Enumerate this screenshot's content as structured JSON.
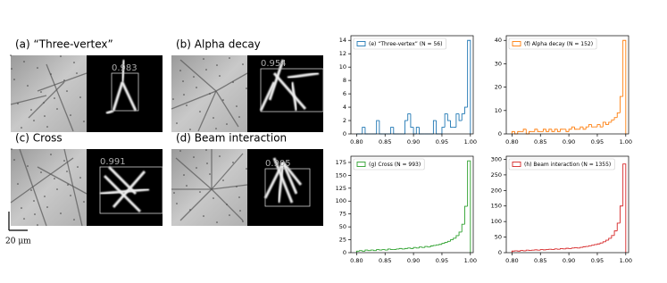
{
  "panels": [
    {
      "label": "(a) “Three-vertex”",
      "score": 0.983
    },
    {
      "label": "(b) Alpha decay",
      "score": 0.954
    },
    {
      "label": "(c) Cross",
      "score": 0.991
    },
    {
      "label": "(d) Beam interaction",
      "score": 0.905
    }
  ],
  "scale_bar": "20 μm",
  "chart_data": [
    {
      "type": "histogram",
      "legend": "(e) “Three-vertex” (N = 56)",
      "legend_loc": "upper left",
      "color": "#1f77b4",
      "bins": [
        0.8,
        0.805,
        0.81,
        0.815,
        0.82,
        0.825,
        0.83,
        0.835,
        0.84,
        0.845,
        0.85,
        0.855,
        0.86,
        0.865,
        0.87,
        0.875,
        0.88,
        0.885,
        0.89,
        0.895,
        0.9,
        0.905,
        0.91,
        0.915,
        0.92,
        0.925,
        0.93,
        0.935,
        0.94,
        0.945,
        0.95,
        0.955,
        0.96,
        0.965,
        0.97,
        0.975,
        0.98,
        0.985,
        0.99,
        0.995,
        1.0
      ],
      "values": [
        0,
        0,
        1,
        0,
        0,
        0,
        0,
        2,
        0,
        0,
        0,
        0,
        1,
        0,
        0,
        0,
        0,
        2,
        3,
        1,
        0,
        1,
        0,
        0,
        0,
        0,
        0,
        2,
        0,
        0,
        1,
        3,
        2,
        1,
        1,
        3,
        2,
        3,
        4,
        14
      ],
      "xlim": [
        0.79,
        1.005
      ],
      "xticks": [
        {
          "value": 0.8,
          "label": "0.80"
        },
        0.85,
        {
          "value": 0.9,
          "label": "0.90"
        },
        0.95,
        {
          "value": 1.0,
          "label": "1.00"
        }
      ],
      "ylim": [
        0,
        14.7
      ],
      "yticks": [
        0,
        2,
        4,
        6,
        8,
        10,
        12,
        14
      ]
    },
    {
      "type": "histogram",
      "legend": "(f) Alpha decay (N = 152)",
      "legend_loc": "upper left",
      "color": "#ff7f0e",
      "bins": [
        0.8,
        0.805,
        0.81,
        0.815,
        0.82,
        0.825,
        0.83,
        0.835,
        0.84,
        0.845,
        0.85,
        0.855,
        0.86,
        0.865,
        0.87,
        0.875,
        0.88,
        0.885,
        0.89,
        0.895,
        0.9,
        0.905,
        0.91,
        0.915,
        0.92,
        0.925,
        0.93,
        0.935,
        0.94,
        0.945,
        0.95,
        0.955,
        0.96,
        0.965,
        0.97,
        0.975,
        0.98,
        0.985,
        0.99,
        0.995,
        1.0
      ],
      "values": [
        1,
        0,
        1,
        1,
        2,
        0,
        1,
        1,
        2,
        1,
        1,
        2,
        1,
        2,
        1,
        2,
        1,
        2,
        2,
        1,
        2,
        3,
        2,
        2,
        3,
        2,
        3,
        4,
        3,
        3,
        4,
        3,
        5,
        4,
        5,
        6,
        7,
        9,
        16,
        40
      ],
      "xlim": [
        0.79,
        1.005
      ],
      "xticks": [
        {
          "value": 0.8,
          "label": "0.80"
        },
        0.85,
        {
          "value": 0.9,
          "label": "0.90"
        },
        0.95,
        {
          "value": 1.0,
          "label": "1.00"
        }
      ],
      "ylim": [
        0,
        42
      ],
      "yticks": [
        0,
        10,
        20,
        30,
        40
      ]
    },
    {
      "type": "histogram",
      "legend": "(g) Cross (N = 993)",
      "legend_loc": "upper left",
      "color": "#2ca02c",
      "bins": [
        0.8,
        0.805,
        0.81,
        0.815,
        0.82,
        0.825,
        0.83,
        0.835,
        0.84,
        0.845,
        0.85,
        0.855,
        0.86,
        0.865,
        0.87,
        0.875,
        0.88,
        0.885,
        0.89,
        0.895,
        0.9,
        0.905,
        0.91,
        0.915,
        0.92,
        0.925,
        0.93,
        0.935,
        0.94,
        0.945,
        0.95,
        0.955,
        0.96,
        0.965,
        0.97,
        0.975,
        0.98,
        0.985,
        0.99,
        0.995,
        1.0
      ],
      "values": [
        3,
        4,
        3,
        5,
        4,
        5,
        4,
        6,
        5,
        6,
        5,
        7,
        6,
        6,
        7,
        8,
        7,
        8,
        9,
        8,
        10,
        9,
        11,
        10,
        12,
        11,
        13,
        14,
        15,
        16,
        18,
        20,
        22,
        25,
        28,
        33,
        40,
        55,
        90,
        178
      ],
      "xlim": [
        0.79,
        1.005
      ],
      "xticks": [
        {
          "value": 0.8,
          "label": "0.80"
        },
        0.85,
        {
          "value": 0.9,
          "label": "0.90"
        },
        0.95,
        {
          "value": 1.0,
          "label": "1.00"
        }
      ],
      "ylim": [
        0,
        187
      ],
      "yticks": [
        0,
        25,
        50,
        75,
        100,
        125,
        150,
        175
      ]
    },
    {
      "type": "histogram",
      "legend": "(h) Beam interaction (N = 1355)",
      "legend_loc": "upper left",
      "color": "#d62728",
      "bins": [
        0.8,
        0.805,
        0.81,
        0.815,
        0.82,
        0.825,
        0.83,
        0.835,
        0.84,
        0.845,
        0.85,
        0.855,
        0.86,
        0.865,
        0.87,
        0.875,
        0.88,
        0.885,
        0.89,
        0.895,
        0.9,
        0.905,
        0.91,
        0.915,
        0.92,
        0.925,
        0.93,
        0.935,
        0.94,
        0.945,
        0.95,
        0.955,
        0.96,
        0.965,
        0.97,
        0.975,
        0.98,
        0.985,
        0.99,
        0.995,
        1.0
      ],
      "values": [
        5,
        6,
        5,
        7,
        6,
        8,
        7,
        8,
        9,
        8,
        10,
        9,
        10,
        11,
        10,
        12,
        11,
        13,
        12,
        14,
        13,
        15,
        16,
        15,
        17,
        19,
        20,
        22,
        24,
        26,
        28,
        31,
        35,
        40,
        46,
        55,
        70,
        95,
        150,
        285
      ],
      "xlim": [
        0.79,
        1.005
      ],
      "xticks": [
        {
          "value": 0.8,
          "label": "0.80"
        },
        0.85,
        {
          "value": 0.9,
          "label": "0.90"
        },
        0.95,
        {
          "value": 1.0,
          "label": "1.00"
        }
      ],
      "ylim": [
        0,
        310
      ],
      "yticks": [
        0,
        50,
        100,
        150,
        200,
        250,
        300
      ]
    }
  ]
}
